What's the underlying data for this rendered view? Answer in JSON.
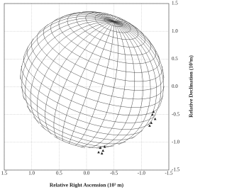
{
  "chart_data": {
    "type": "scatter",
    "x_label": "Relative Right Ascension (10³ m)",
    "y_label": "Relative Declination (10³m)",
    "xlim": [
      1.5,
      -1.5
    ],
    "ylim": [
      -1.5,
      1.5
    ],
    "xticks": [
      1.5,
      {
        "value": 1,
        "label": "1.0"
      },
      0.5,
      {
        "value": 0,
        "label": "0.0"
      },
      -0.5,
      {
        "value": -1,
        "label": "-1.0"
      },
      {
        "value": -1.5,
        "label": "-1.5"
      }
    ],
    "yticks": [
      1.5,
      {
        "value": 1,
        "label": "1.0"
      },
      0.5,
      {
        "value": 0,
        "label": "0.0"
      },
      -0.5,
      {
        "value": -1,
        "label": "-1.0"
      },
      -1.5
    ],
    "grid": true,
    "series": [
      {
        "color": "#222222",
        "x": [
          -1.2,
          -1.25,
          -1.18,
          -1.22,
          -1.15,
          -0.25,
          -0.3,
          -0.22,
          -0.33,
          -0.28
        ],
        "values": [
          -0.5,
          -0.58,
          -0.65,
          -0.45,
          -0.7,
          -1.1,
          -1.15,
          -1.18,
          -1.08,
          -1.2
        ]
      }
    ]
  }
}
